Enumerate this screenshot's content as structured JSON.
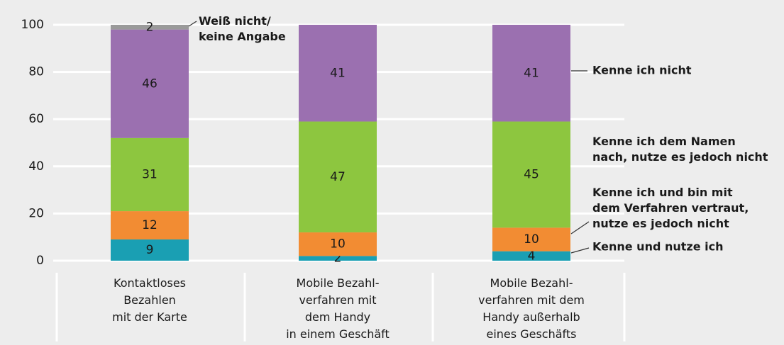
{
  "chart_data": {
    "type": "stacked_bar",
    "categories": [
      "Kontaktloses\nBezahlen\nmit der Karte",
      "Mobile Bezahl-\nverfahren mit\ndem Handy\nin einem Geschäft",
      "Mobile Bezahl-\nverfahren mit dem\nHandy außerhalb\neines Geschäfts"
    ],
    "series": [
      {
        "name": "Kenne und nutze ich",
        "color": "#1a9fb3",
        "values": [
          9,
          2,
          4
        ]
      },
      {
        "name": "Kenne ich und bin mit\ndem Verfahren vertraut,\nnutze es jedoch nicht",
        "color": "#f28c33",
        "values": [
          12,
          10,
          10
        ]
      },
      {
        "name": "Kenne ich dem Namen\nnach, nutze es jedoch nicht",
        "color": "#8dc63f",
        "values": [
          31,
          47,
          45
        ]
      },
      {
        "name": "Kenne ich nicht",
        "color": "#9b70b0",
        "values": [
          46,
          41,
          41
        ]
      },
      {
        "name": "Weiß nicht/\nkeine Angabe",
        "color": "#9a9a9a",
        "values": [
          2,
          null,
          null
        ]
      }
    ],
    "ylim": [
      0,
      100
    ],
    "yticks": [
      0,
      20,
      40,
      60,
      80,
      100
    ],
    "grid": true
  }
}
